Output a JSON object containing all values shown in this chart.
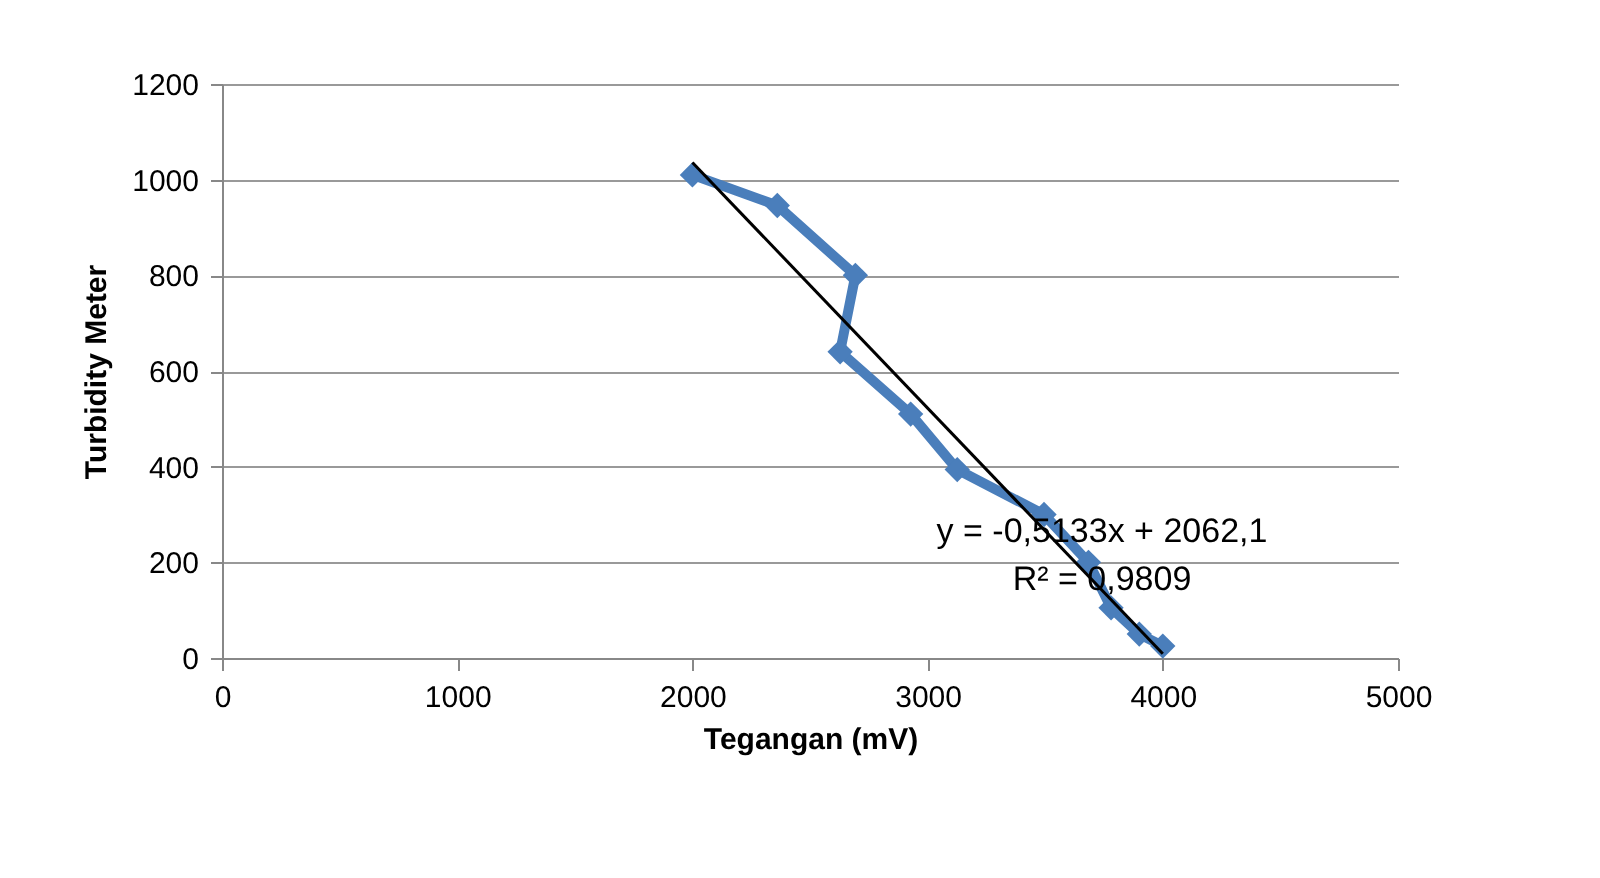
{
  "chart_data": {
    "type": "line",
    "xlabel": "Tegangan (mV)",
    "ylabel": "Turbidity Meter",
    "series": [
      {
        "color": "#4a7ebb",
        "x": [
          2000,
          2361,
          2693,
          2628,
          2928,
          3126,
          3495,
          3684,
          3780,
          3900,
          4000
        ],
        "values": [
          1010,
          946,
          800,
          640,
          510,
          394,
          300,
          200,
          105,
          50,
          25
        ]
      },
      {
        "color": "#000000",
        "marker": "none",
        "x": [
          2000,
          4000
        ],
        "values": [
          1036,
          9
        ]
      }
    ],
    "marker": "diamond",
    "line_style": "solid",
    "grid": "y",
    "xlim": [
      0,
      5000
    ],
    "xticks": [
      0,
      1000,
      2000,
      3000,
      4000,
      5000
    ],
    "ylim": [
      0,
      1200
    ],
    "yticks": [
      0,
      200,
      400,
      600,
      800,
      1000,
      1200
    ],
    "annotations": [
      "y = -0,5133x + 2062,1",
      "R² = 0,9809"
    ]
  }
}
